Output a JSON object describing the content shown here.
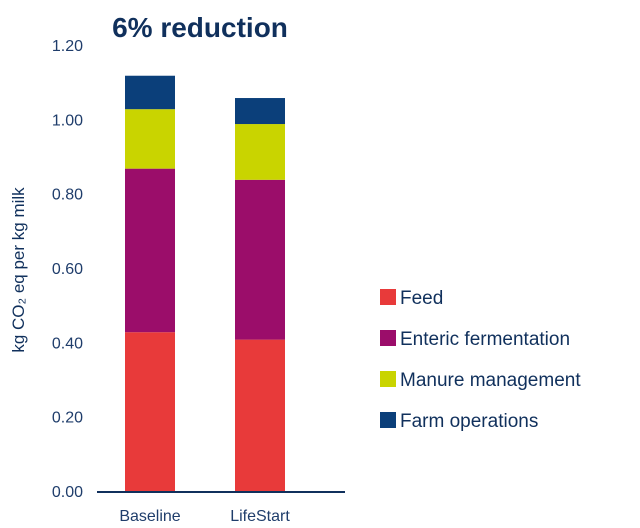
{
  "chart_data": {
    "type": "bar",
    "stacked": true,
    "title": "6% reduction",
    "ylabel": "kg CO₂ eq per kg milk",
    "xlabel": "",
    "ylim": [
      0,
      1.2
    ],
    "yticks": [
      "0.00",
      "0.20",
      "0.40",
      "0.60",
      "0.80",
      "1.00",
      "1.20"
    ],
    "categories": [
      "Baseline",
      "LifeStart"
    ],
    "series": [
      {
        "name": "Feed",
        "color": "#e83a3a",
        "values": [
          0.43,
          0.41
        ]
      },
      {
        "name": "Enteric fermentation",
        "color": "#9b0d6a",
        "values": [
          0.44,
          0.43
        ]
      },
      {
        "name": "Manure management",
        "color": "#c9d400",
        "values": [
          0.16,
          0.15
        ]
      },
      {
        "name": "Farm operations",
        "color": "#0b3f7a",
        "values": [
          0.09,
          0.07
        ]
      }
    ],
    "legend_position": "right",
    "grid": false
  }
}
